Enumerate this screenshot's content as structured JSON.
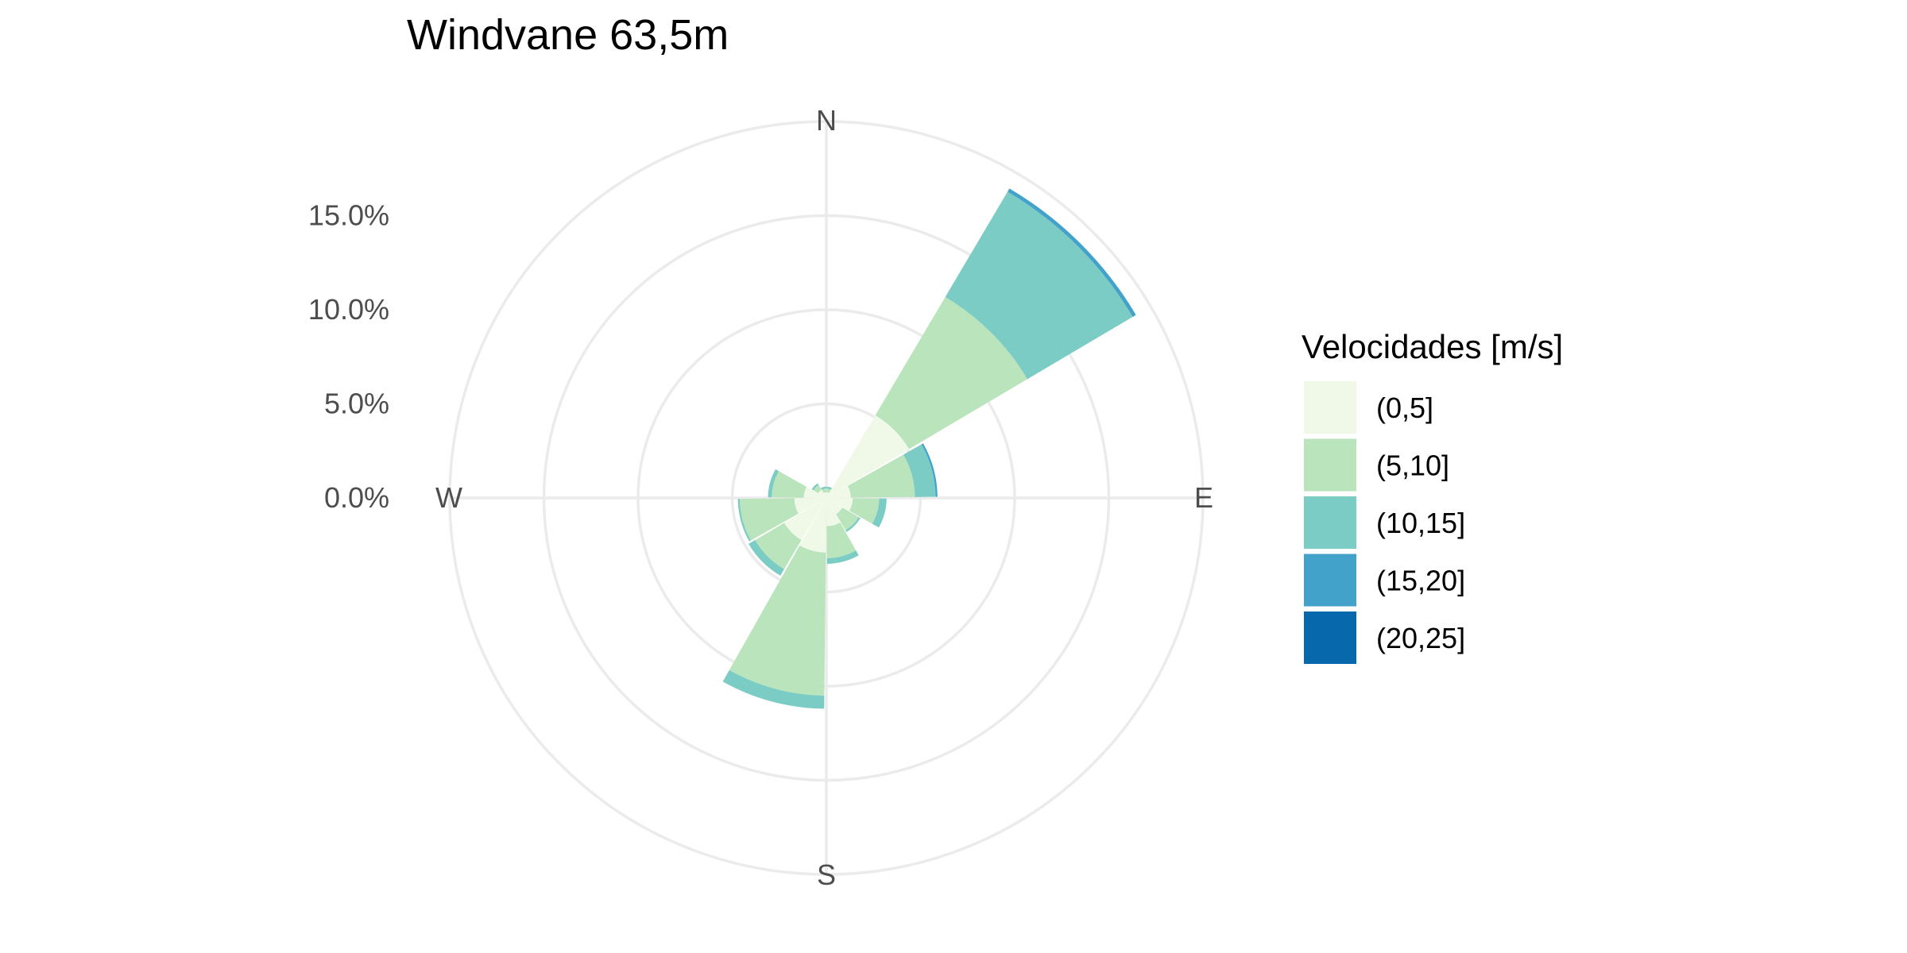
{
  "chart_data": {
    "type": "wind-rose",
    "title": "Windvane 63,5m",
    "radial_ticks": [
      "0.0%",
      "5.0%",
      "10.0%",
      "15.0%"
    ],
    "radial_tick_values": [
      0,
      5,
      10,
      15
    ],
    "rmax": 20,
    "directions": [
      {
        "label": "N",
        "angle": 0
      },
      {
        "label": "E",
        "angle": 90
      },
      {
        "label": "S",
        "angle": 180
      },
      {
        "label": "W",
        "angle": 270
      }
    ],
    "sector_width_deg": 30,
    "sector_centers_deg": [
      15,
      45,
      75,
      105,
      135,
      165,
      195,
      225,
      255,
      285,
      315,
      345
    ],
    "legend_title": "Velocidades [m/s]",
    "legend_position": "right",
    "series": [
      {
        "name": "(0,5]",
        "color": "#f0f9e8",
        "values": [
          0.3,
          5.1,
          1.3,
          1.4,
          1.0,
          1.5,
          2.9,
          2.6,
          1.7,
          1.2,
          0.5,
          0.3
        ]
      },
      {
        "name": "(5,10]",
        "color": "#bae4bc",
        "values": [
          0.2,
          7.3,
          3.4,
          1.4,
          1.0,
          1.7,
          7.6,
          1.8,
          2.9,
          1.7,
          0.3,
          0.2
        ]
      },
      {
        "name": "(10,15]",
        "color": "#7bccc4",
        "values": [
          0.1,
          6.5,
          1.1,
          0.4,
          0.1,
          0.3,
          0.7,
          0.4,
          0.1,
          0.2,
          0.1,
          0.1
        ]
      },
      {
        "name": "(15,20]",
        "color": "#43a2ca",
        "values": [
          0.0,
          0.2,
          0.1,
          0.0,
          0.0,
          0.0,
          0.0,
          0.0,
          0.0,
          0.0,
          0.0,
          0.0
        ]
      },
      {
        "name": "(20,25]",
        "color": "#0868ac",
        "values": [
          0.0,
          0.0,
          0.0,
          0.0,
          0.0,
          0.0,
          0.0,
          0.0,
          0.0,
          0.0,
          0.0,
          0.0
        ]
      }
    ],
    "grid": true
  }
}
